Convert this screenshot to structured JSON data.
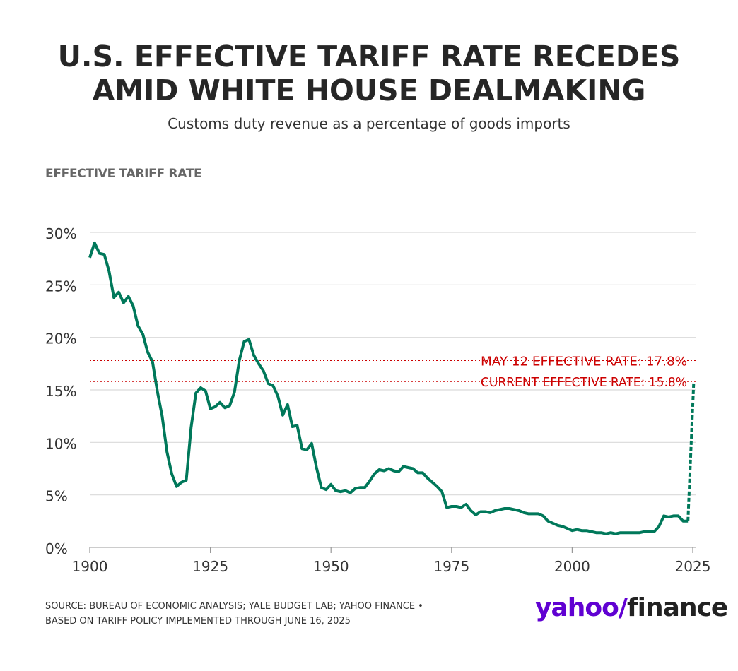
{
  "header": {
    "title_line1": "U.S. EFFECTIVE TARIFF RATE RECEDES",
    "title_line2": "AMID WHITE HOUSE DEALMAKING",
    "subtitle": "Customs duty revenue as a percentage of goods imports"
  },
  "footer": {
    "source_line1": "SOURCE: BUREAU OF ECONOMIC ANALYSIS; YALE BUDGET LAB; YAHOO FINANCE •",
    "source_line2": "BASED ON TARIFF POLICY IMPLEMENTED THROUGH JUNE 16, 2025",
    "logo_yahoo": "yahoo/",
    "logo_finance": "finance"
  },
  "chart_data": {
    "type": "line",
    "title": "U.S. EFFECTIVE TARIFF RATE RECEDES AMID WHITE HOUSE DEALMAKING",
    "subtitle": "Customs duty revenue as a percentage of goods imports",
    "ylabel": "EFFECTIVE TARIFF RATE",
    "xlabel": "",
    "xlim": [
      1900,
      2026
    ],
    "ylim": [
      0,
      30
    ],
    "x_ticks": [
      1900,
      1925,
      1950,
      1975,
      2000,
      2025
    ],
    "y_ticks": [
      0,
      5,
      10,
      15,
      20,
      25,
      30
    ],
    "y_tick_labels": [
      "0%",
      "5%",
      "10%",
      "15%",
      "20%",
      "25%",
      "30%"
    ],
    "grid": "horizontal",
    "colors": {
      "line": "#00785a",
      "reference": "#cc0000",
      "grid": "#d9d9d9"
    },
    "series": [
      {
        "style": "solid",
        "points": [
          [
            1900,
            27.6
          ],
          [
            1901,
            29.0
          ],
          [
            1902,
            28.0
          ],
          [
            1903,
            27.9
          ],
          [
            1904,
            26.3
          ],
          [
            1905,
            23.8
          ],
          [
            1906,
            24.3
          ],
          [
            1907,
            23.3
          ],
          [
            1908,
            23.9
          ],
          [
            1909,
            23.0
          ],
          [
            1910,
            21.1
          ],
          [
            1911,
            20.3
          ],
          [
            1912,
            18.6
          ],
          [
            1913,
            17.7
          ],
          [
            1914,
            14.9
          ],
          [
            1915,
            12.5
          ],
          [
            1916,
            9.1
          ],
          [
            1917,
            7.0
          ],
          [
            1918,
            5.8
          ],
          [
            1919,
            6.2
          ],
          [
            1920,
            6.4
          ],
          [
            1921,
            11.4
          ],
          [
            1922,
            14.7
          ],
          [
            1923,
            15.2
          ],
          [
            1924,
            14.9
          ],
          [
            1925,
            13.2
          ],
          [
            1926,
            13.4
          ],
          [
            1927,
            13.8
          ],
          [
            1928,
            13.3
          ],
          [
            1929,
            13.5
          ],
          [
            1930,
            14.8
          ],
          [
            1931,
            17.8
          ],
          [
            1932,
            19.6
          ],
          [
            1933,
            19.8
          ],
          [
            1934,
            18.3
          ],
          [
            1935,
            17.5
          ],
          [
            1936,
            16.8
          ],
          [
            1937,
            15.6
          ],
          [
            1938,
            15.4
          ],
          [
            1939,
            14.4
          ],
          [
            1940,
            12.6
          ],
          [
            1941,
            13.6
          ],
          [
            1942,
            11.5
          ],
          [
            1943,
            11.6
          ],
          [
            1944,
            9.4
          ],
          [
            1945,
            9.3
          ],
          [
            1946,
            9.9
          ],
          [
            1947,
            7.6
          ],
          [
            1948,
            5.7
          ],
          [
            1949,
            5.5
          ],
          [
            1950,
            6.0
          ],
          [
            1951,
            5.4
          ],
          [
            1952,
            5.3
          ],
          [
            1953,
            5.4
          ],
          [
            1954,
            5.2
          ],
          [
            1955,
            5.6
          ],
          [
            1956,
            5.7
          ],
          [
            1957,
            5.7
          ],
          [
            1958,
            6.3
          ],
          [
            1959,
            7.0
          ],
          [
            1960,
            7.4
          ],
          [
            1961,
            7.3
          ],
          [
            1962,
            7.5
          ],
          [
            1963,
            7.3
          ],
          [
            1964,
            7.2
          ],
          [
            1965,
            7.7
          ],
          [
            1966,
            7.6
          ],
          [
            1967,
            7.5
          ],
          [
            1968,
            7.1
          ],
          [
            1969,
            7.1
          ],
          [
            1970,
            6.6
          ],
          [
            1971,
            6.2
          ],
          [
            1972,
            5.8
          ],
          [
            1973,
            5.3
          ],
          [
            1974,
            3.8
          ],
          [
            1975,
            3.9
          ],
          [
            1976,
            3.9
          ],
          [
            1977,
            3.8
          ],
          [
            1978,
            4.1
          ],
          [
            1979,
            3.5
          ],
          [
            1980,
            3.1
          ],
          [
            1981,
            3.4
          ],
          [
            1982,
            3.4
          ],
          [
            1983,
            3.3
          ],
          [
            1984,
            3.5
          ],
          [
            1985,
            3.6
          ],
          [
            1986,
            3.7
          ],
          [
            1987,
            3.7
          ],
          [
            1988,
            3.6
          ],
          [
            1989,
            3.5
          ],
          [
            1990,
            3.3
          ],
          [
            1991,
            3.2
          ],
          [
            1992,
            3.2
          ],
          [
            1993,
            3.2
          ],
          [
            1994,
            3.0
          ],
          [
            1995,
            2.5
          ],
          [
            1996,
            2.3
          ],
          [
            1997,
            2.1
          ],
          [
            1998,
            2.0
          ],
          [
            1999,
            1.8
          ],
          [
            2000,
            1.6
          ],
          [
            2001,
            1.7
          ],
          [
            2002,
            1.6
          ],
          [
            2003,
            1.6
          ],
          [
            2004,
            1.5
          ],
          [
            2005,
            1.4
          ],
          [
            2006,
            1.4
          ],
          [
            2007,
            1.3
          ],
          [
            2008,
            1.4
          ],
          [
            2009,
            1.3
          ],
          [
            2010,
            1.4
          ],
          [
            2011,
            1.4
          ],
          [
            2012,
            1.4
          ],
          [
            2013,
            1.4
          ],
          [
            2014,
            1.4
          ],
          [
            2015,
            1.5
          ],
          [
            2016,
            1.5
          ],
          [
            2017,
            1.5
          ],
          [
            2018,
            2.0
          ],
          [
            2019,
            3.0
          ],
          [
            2020,
            2.9
          ],
          [
            2021,
            3.0
          ],
          [
            2022,
            3.0
          ],
          [
            2023,
            2.5
          ],
          [
            2024,
            2.5
          ]
        ]
      },
      {
        "style": "dashed",
        "points": [
          [
            2024,
            2.5
          ],
          [
            2025.2,
            15.8
          ]
        ]
      }
    ],
    "reference_lines": [
      {
        "y": 17.8,
        "label": "MAY 12 EFFECTIVE RATE: 17.8%"
      },
      {
        "y": 15.8,
        "label": "CURRENT EFFECTIVE RATE: 15.8%"
      }
    ]
  }
}
